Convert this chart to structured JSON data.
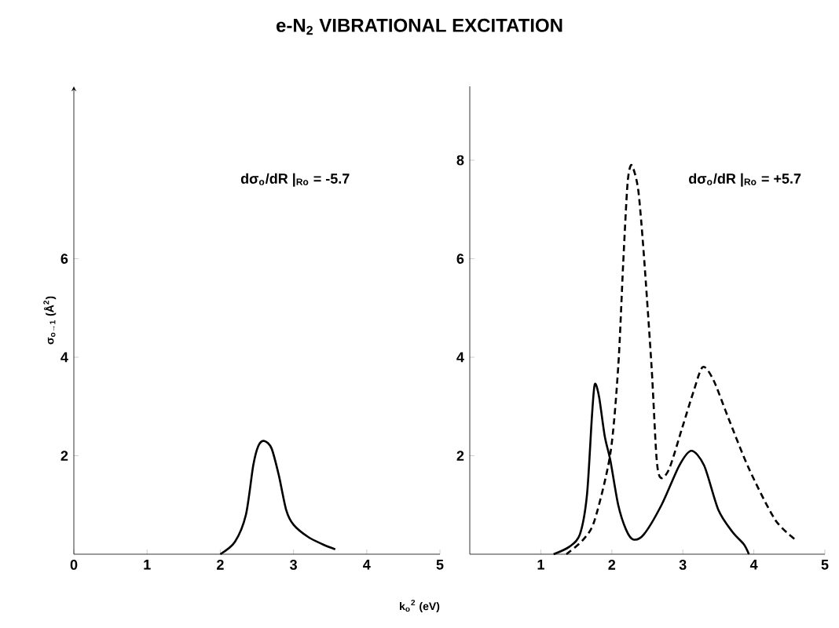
{
  "chart_data": [
    {
      "type": "line",
      "title": "e-N$_{2}$ VIBRATIONAL EXCITATION",
      "xlabel": "k$_{o}$$^{2}$ (eV)",
      "ylabel": "σ$_{o→1}$ (Å$^{2}$)",
      "annotations": [
        "dσ$_{o}$/dR |$_{Ro}$ = -5.7"
      ],
      "xlim": [
        0,
        5
      ],
      "ylim": [
        0,
        9.5
      ],
      "xticks": [
        0,
        1,
        2,
        3,
        4,
        5
      ],
      "yticks": [
        2,
        4,
        6
      ],
      "series": [
        {
          "color": "#000000",
          "line_style": "solid",
          "x": [
            2.0,
            2.2,
            2.35,
            2.45,
            2.52,
            2.6,
            2.7,
            2.8,
            2.9,
            3.0,
            3.2,
            3.4,
            3.57
          ],
          "values": [
            0,
            0.25,
            0.8,
            1.8,
            2.2,
            2.3,
            2.15,
            1.6,
            0.9,
            0.6,
            0.35,
            0.2,
            0.1
          ]
        }
      ]
    },
    {
      "type": "line",
      "annotations": [
        "dσ$_{o}$/dR |$_{Ro}$ = +5.7"
      ],
      "xlim": [
        0,
        5
      ],
      "ylim": [
        0,
        9.5
      ],
      "xticks": [
        1,
        2,
        3,
        4,
        5
      ],
      "yticks": [
        2,
        4,
        6,
        8
      ],
      "series": [
        {
          "color": "#000000",
          "line_style": "solid",
          "x": [
            1.18,
            1.4,
            1.55,
            1.65,
            1.72,
            1.76,
            1.82,
            1.9,
            1.98,
            2.09,
            2.2,
            2.3,
            2.45,
            2.7,
            2.95,
            3.12,
            3.3,
            3.5,
            3.7,
            3.86,
            3.93
          ],
          "values": [
            0,
            0.15,
            0.4,
            1.2,
            2.8,
            3.45,
            3.2,
            2.4,
            1.9,
            1.0,
            0.5,
            0.3,
            0.4,
            1.0,
            1.8,
            2.1,
            1.8,
            0.9,
            0.45,
            0.2,
            0
          ]
        },
        {
          "color": "#000000",
          "line_style": "dashed",
          "x": [
            1.36,
            1.6,
            1.76,
            1.98,
            2.09,
            2.16,
            2.22,
            2.27,
            2.33,
            2.38,
            2.45,
            2.56,
            2.63,
            2.69,
            2.81,
            2.99,
            3.15,
            3.28,
            3.43,
            3.64,
            3.93,
            4.3,
            4.59
          ],
          "values": [
            0,
            0.3,
            0.7,
            2.05,
            3.8,
            5.9,
            7.5,
            7.9,
            7.7,
            7.3,
            6.1,
            3.8,
            1.95,
            1.55,
            1.74,
            2.56,
            3.3,
            3.8,
            3.54,
            2.77,
            1.74,
            0.7,
            0.29
          ]
        }
      ]
    }
  ]
}
